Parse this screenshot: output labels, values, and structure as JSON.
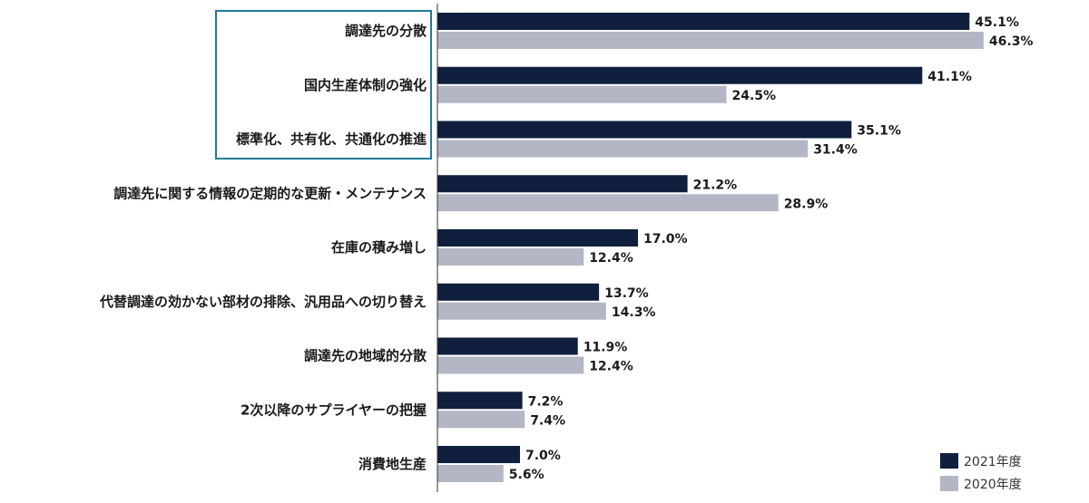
{
  "chart_data": {
    "type": "bar",
    "orientation": "horizontal",
    "categories": [
      "調達先の分散",
      "国内生産体制の強化",
      "標準化、共有化、共通化の推進",
      "調達先に関する情報の定期的な更新・メンテナンス",
      "在庫の積み増し",
      "代替調達の効かない部材の排除、汎用品への切り替え",
      "調達先の地域的分散",
      "2次以降のサプライヤーの把握",
      "消費地生産"
    ],
    "series": [
      {
        "name": "2021年度",
        "color": "#0f1f3d",
        "values": [
          45.1,
          41.1,
          35.1,
          21.2,
          17.0,
          13.7,
          11.9,
          7.2,
          7.0
        ],
        "labels": [
          "45.1%",
          "41.1%",
          "35.1%",
          "21.2%",
          "17.0%",
          "13.7%",
          "11.9%",
          "7.2%",
          "7.0%"
        ]
      },
      {
        "name": "2020年度",
        "color": "#b3b6c4",
        "values": [
          46.3,
          24.5,
          31.4,
          28.9,
          12.4,
          14.3,
          12.4,
          7.4,
          5.6
        ],
        "labels": [
          "46.3%",
          "24.5%",
          "31.4%",
          "28.9%",
          "12.4%",
          "14.3%",
          "12.4%",
          "7.4%",
          "5.6%"
        ]
      }
    ],
    "xlim": [
      0,
      50
    ],
    "grid": false,
    "legend_position": "bottom-right",
    "highlighted_categories": [
      0,
      1,
      2
    ],
    "highlight_color": "#1f7a99"
  }
}
